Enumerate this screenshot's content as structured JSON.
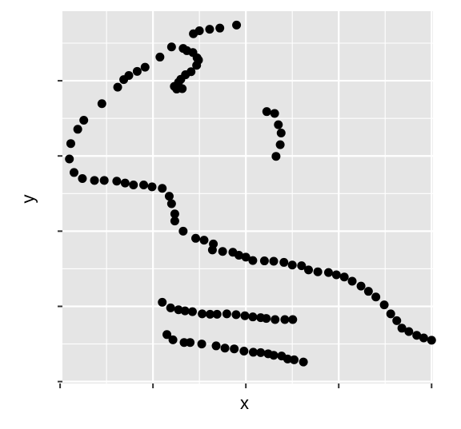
{
  "chart_data": {
    "type": "scatter",
    "title": "",
    "xlabel": "x",
    "ylabel": "y",
    "xlim": [
      20.5,
      100.3
    ],
    "ylim": [
      -0.5,
      98.5
    ],
    "x_gridlines": [
      30,
      40,
      50,
      60,
      70,
      80,
      90,
      100
    ],
    "y_gridlines": [
      0,
      10,
      20,
      30,
      40,
      50,
      60,
      70,
      80,
      90
    ],
    "x_ticks": [
      20,
      40,
      60,
      80,
      100
    ],
    "y_ticks": [
      0,
      20,
      40,
      60,
      80
    ],
    "tick_labels_shown": false,
    "grid": true,
    "panel_background": "#e5e5e5",
    "grid_color": "#ffffff",
    "point_color": "#000000",
    "series": [
      {
        "points": [
          [
            58.0,
            94.8
          ],
          [
            54.4,
            94.0
          ],
          [
            52.2,
            93.7
          ],
          [
            50.0,
            93.3
          ],
          [
            48.7,
            92.5
          ],
          [
            44.0,
            89.0
          ],
          [
            41.5,
            86.3
          ],
          [
            38.3,
            83.6
          ],
          [
            36.6,
            82.5
          ],
          [
            34.8,
            81.4
          ],
          [
            33.7,
            80.3
          ],
          [
            32.4,
            78.3
          ],
          [
            29.0,
            73.9
          ],
          [
            25.1,
            69.5
          ],
          [
            23.8,
            67.1
          ],
          [
            22.3,
            63.3
          ],
          [
            22.0,
            59.2
          ],
          [
            23.0,
            55.6
          ],
          [
            24.8,
            54.0
          ],
          [
            27.4,
            53.5
          ],
          [
            29.5,
            53.5
          ],
          [
            32.2,
            53.3
          ],
          [
            34.0,
            52.8
          ],
          [
            35.8,
            52.3
          ],
          [
            38.0,
            52.3
          ],
          [
            39.8,
            51.8
          ],
          [
            42.0,
            51.4
          ],
          [
            43.5,
            49.3
          ],
          [
            44.0,
            47.3
          ],
          [
            44.7,
            44.6
          ],
          [
            44.7,
            42.7
          ],
          [
            46.5,
            40.0
          ],
          [
            49.2,
            38.1
          ],
          [
            51.0,
            37.6
          ],
          [
            53.0,
            36.6
          ],
          [
            52.8,
            35.0
          ],
          [
            55.0,
            34.6
          ],
          [
            57.2,
            34.4
          ],
          [
            58.5,
            33.6
          ],
          [
            60.0,
            33.1
          ],
          [
            61.5,
            32.2
          ],
          [
            64.0,
            32.1
          ],
          [
            66.0,
            32.0
          ],
          [
            68.2,
            31.7
          ],
          [
            70.0,
            31.0
          ],
          [
            72.0,
            30.8
          ],
          [
            73.5,
            29.7
          ],
          [
            75.5,
            29.2
          ],
          [
            77.8,
            29.0
          ],
          [
            79.5,
            28.4
          ],
          [
            81.2,
            27.8
          ],
          [
            82.9,
            26.7
          ],
          [
            84.8,
            25.4
          ],
          [
            86.4,
            24.0
          ],
          [
            88.0,
            22.5
          ],
          [
            89.8,
            20.4
          ],
          [
            91.2,
            18.0
          ],
          [
            92.5,
            16.2
          ],
          [
            93.6,
            14.2
          ],
          [
            95.1,
            13.3
          ],
          [
            96.8,
            12.3
          ],
          [
            98.3,
            11.6
          ],
          [
            100.0,
            11.0
          ],
          [
            46.5,
            88.6
          ],
          [
            47.3,
            88.0
          ],
          [
            48.6,
            87.5
          ],
          [
            49.5,
            86.1
          ],
          [
            49.8,
            85.5
          ],
          [
            49.4,
            84.1
          ],
          [
            48.2,
            82.4
          ],
          [
            47.0,
            81.6
          ],
          [
            46.0,
            80.4
          ],
          [
            45.5,
            79.6
          ],
          [
            44.6,
            78.5
          ],
          [
            45.1,
            77.8
          ],
          [
            46.3,
            77.9
          ],
          [
            64.5,
            71.8
          ],
          [
            66.2,
            71.3
          ],
          [
            67.0,
            68.3
          ],
          [
            67.6,
            66.1
          ],
          [
            67.4,
            63.0
          ],
          [
            66.5,
            59.9
          ],
          [
            42.0,
            21.1
          ],
          [
            43.8,
            19.6
          ],
          [
            45.5,
            19.1
          ],
          [
            46.9,
            18.8
          ],
          [
            48.5,
            18.6
          ],
          [
            50.6,
            18.0
          ],
          [
            52.3,
            17.9
          ],
          [
            53.8,
            17.9
          ],
          [
            55.9,
            18.0
          ],
          [
            57.9,
            17.8
          ],
          [
            59.8,
            17.5
          ],
          [
            61.5,
            17.2
          ],
          [
            63.2,
            17.0
          ],
          [
            64.4,
            16.8
          ],
          [
            66.3,
            16.5
          ],
          [
            68.4,
            16.5
          ],
          [
            70.1,
            16.5
          ],
          [
            43.0,
            12.5
          ],
          [
            44.3,
            11.1
          ],
          [
            46.7,
            10.4
          ],
          [
            48.0,
            10.4
          ],
          [
            50.5,
            10.0
          ],
          [
            53.6,
            9.5
          ],
          [
            55.5,
            8.9
          ],
          [
            57.5,
            8.7
          ],
          [
            59.6,
            8.1
          ],
          [
            61.6,
            7.8
          ],
          [
            63.2,
            7.7
          ],
          [
            64.8,
            7.4
          ],
          [
            66.0,
            7.0
          ],
          [
            67.7,
            6.8
          ],
          [
            69.0,
            6.0
          ],
          [
            70.4,
            5.8
          ],
          [
            72.4,
            5.2
          ]
        ]
      }
    ]
  }
}
